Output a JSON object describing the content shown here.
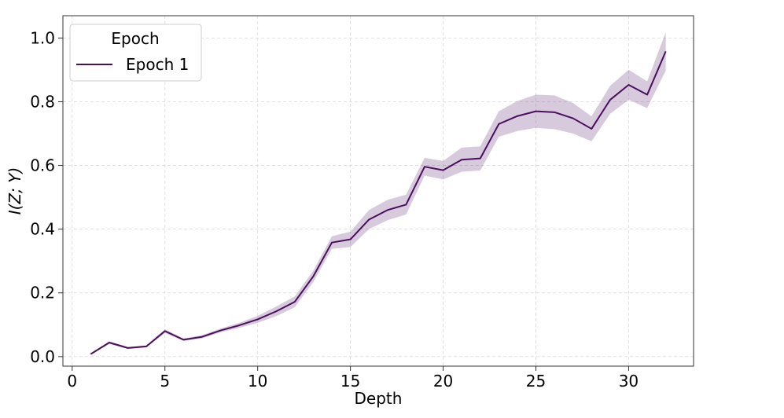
{
  "chart_data": {
    "type": "line",
    "xlabel": "Depth",
    "ylabel": "I(Z; Y)",
    "xlim": [
      -0.5,
      33.5
    ],
    "ylim": [
      -0.03,
      1.07
    ],
    "xticks": [
      0,
      5,
      10,
      15,
      20,
      25,
      30
    ],
    "yticks": [
      0.0,
      0.2,
      0.4,
      0.6,
      0.8,
      1.0
    ],
    "xtick_labels": [
      "0",
      "5",
      "10",
      "15",
      "20",
      "25",
      "30"
    ],
    "ytick_labels": [
      "0.0",
      "0.2",
      "0.4",
      "0.6",
      "0.8",
      "1.0"
    ],
    "grid": true,
    "legend": {
      "title": "Epoch",
      "placement": "top-left"
    },
    "series": [
      {
        "name": "Epoch 1",
        "color": "#4a0f5c",
        "band_color": "#5b2a74",
        "x": [
          1,
          2,
          3,
          4,
          5,
          6,
          7,
          8,
          9,
          10,
          11,
          12,
          13,
          14,
          15,
          16,
          17,
          18,
          19,
          20,
          21,
          22,
          23,
          24,
          25,
          26,
          27,
          28,
          29,
          30,
          31,
          32
        ],
        "y": [
          0.008,
          0.044,
          0.027,
          0.032,
          0.08,
          0.053,
          0.062,
          0.082,
          0.098,
          0.117,
          0.142,
          0.172,
          0.252,
          0.358,
          0.368,
          0.43,
          0.46,
          0.477,
          0.596,
          0.585,
          0.618,
          0.622,
          0.73,
          0.755,
          0.77,
          0.767,
          0.748,
          0.715,
          0.806,
          0.853,
          0.822,
          0.958
        ],
        "lower": [
          0.006,
          0.04,
          0.024,
          0.029,
          0.074,
          0.049,
          0.057,
          0.076,
          0.09,
          0.106,
          0.127,
          0.155,
          0.234,
          0.338,
          0.344,
          0.4,
          0.428,
          0.446,
          0.568,
          0.556,
          0.58,
          0.584,
          0.69,
          0.708,
          0.718,
          0.714,
          0.7,
          0.676,
          0.762,
          0.806,
          0.78,
          0.898
        ],
        "upper": [
          0.01,
          0.048,
          0.03,
          0.035,
          0.086,
          0.057,
          0.067,
          0.088,
          0.106,
          0.128,
          0.157,
          0.189,
          0.27,
          0.378,
          0.392,
          0.46,
          0.492,
          0.508,
          0.624,
          0.614,
          0.656,
          0.66,
          0.77,
          0.802,
          0.822,
          0.82,
          0.796,
          0.754,
          0.85,
          0.9,
          0.864,
          1.018
        ]
      }
    ]
  }
}
